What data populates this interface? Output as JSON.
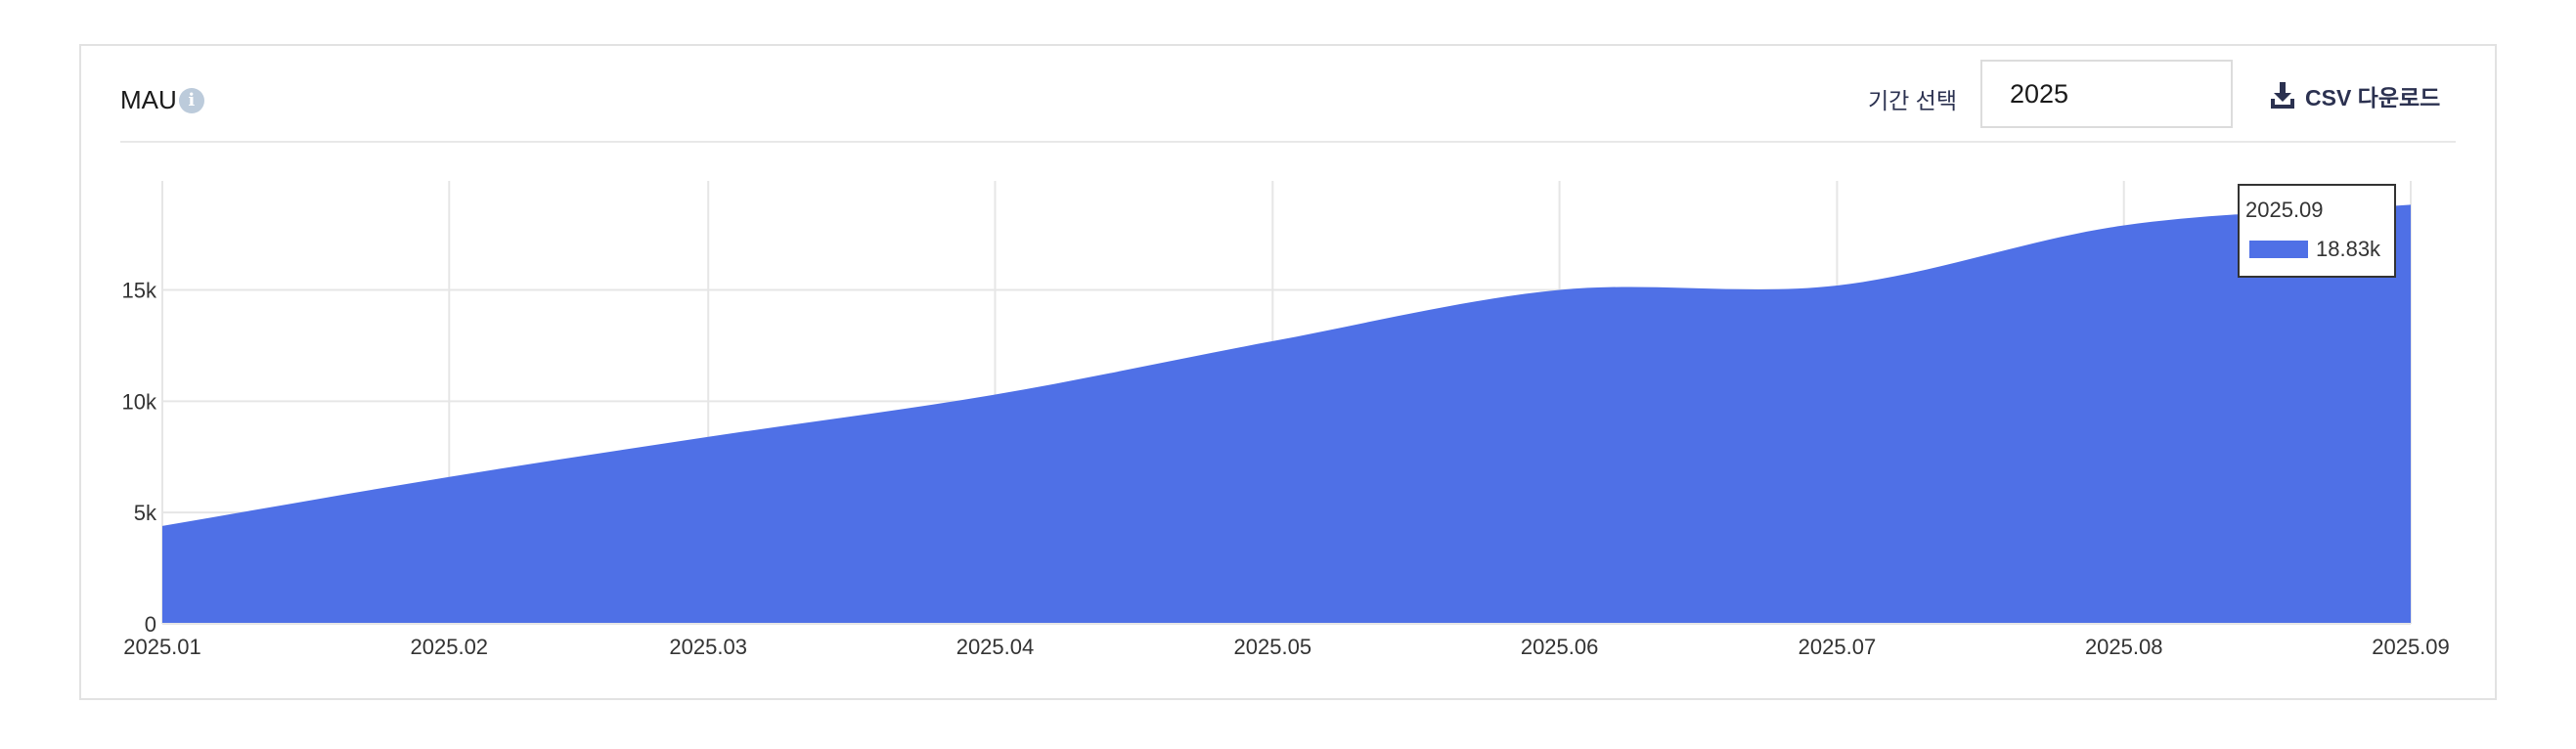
{
  "header": {
    "title": "MAU",
    "info_icon": "info-icon",
    "period_label": "기간 선택",
    "period_value": "2025",
    "csv_label": "CSV 다운로드",
    "csv_icon": "download-icon"
  },
  "tooltip": {
    "date": "2025.09",
    "value": "18.83k"
  },
  "colors": {
    "area": "#4f70e6",
    "grid": "#e6e6e6",
    "text": "#333333",
    "accent_text": "#2b3150"
  },
  "chart_data": {
    "type": "area",
    "title": "MAU",
    "x": [
      "2025-01-01",
      "2025-02-01",
      "2025-03-01",
      "2025-04-01",
      "2025-05-01",
      "2025-06-01",
      "2025-07-01",
      "2025-08-01",
      "2025-09-01"
    ],
    "x_tick_labels": [
      "2025.01",
      "2025.02",
      "2025.03",
      "2025.04",
      "2025.05",
      "2025.06",
      "2025.07",
      "2025.08",
      "2025.09"
    ],
    "values": [
      4400,
      6600,
      8400,
      10300,
      12700,
      15000,
      15200,
      17900,
      18830
    ],
    "y_ticks": [
      0,
      5000,
      10000,
      15000
    ],
    "y_tick_labels": [
      "0",
      "5k",
      "10k",
      "15k"
    ],
    "ylim": [
      0,
      19900
    ],
    "grid": true,
    "legend": "none"
  }
}
